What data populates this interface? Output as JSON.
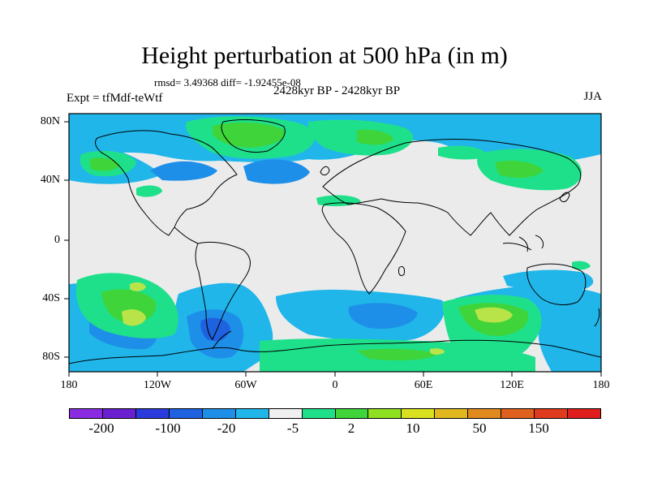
{
  "title": "Height perturbation at 500 hPa (in m)",
  "stats": "rmsd= 3.49368 diff= -1.92455e-08",
  "subtitle": "2428kyr BP - 2428kyr BP",
  "experiment": "Expt = tfMdf-teWtf",
  "season": "JJA",
  "lat_labels": [
    "80N",
    "40N",
    "0",
    "40S",
    "80S"
  ],
  "lon_labels": [
    "180",
    "120W",
    "60W",
    "0",
    "60E",
    "120E",
    "180"
  ],
  "colorbar": {
    "colors": [
      "#8a2be2",
      "#6a1fd0",
      "#2a3adc",
      "#1e62e0",
      "#1e8fe8",
      "#20b6ea",
      "#f0f0f0",
      "#1fe08a",
      "#3ed43a",
      "#8ee020",
      "#d8e020",
      "#e0b81e",
      "#e08a1e",
      "#e0601e",
      "#e03a1e",
      "#e01e1e"
    ],
    "labels": [
      "-200",
      "-100",
      "-20",
      "-5",
      "2",
      "10",
      "50",
      "150"
    ]
  },
  "fill_colors": {
    "neutral": "#ebebeb",
    "light_blue": "#20b6ea",
    "medium_blue": "#1e8fe8",
    "dark_blue": "#1e62e0",
    "light_green": "#1fe08a",
    "green": "#3ed43a",
    "yellow_green": "#b8e44a"
  }
}
